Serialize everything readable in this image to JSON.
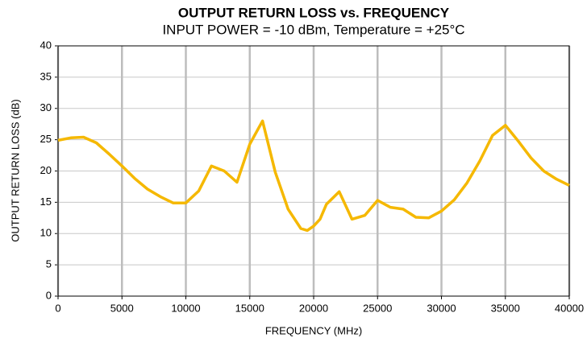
{
  "chart_data": {
    "type": "line",
    "title": "OUTPUT RETURN LOSS vs. FREQUENCY",
    "subtitle": "INPUT POWER = -10 dBm, Temperature = +25°C",
    "x_label": "FREQUENCY (MHz)",
    "y_label": "OUTPUT RETURN LOSS (dB)",
    "x": [
      0,
      1000,
      2000,
      3000,
      4000,
      5000,
      6000,
      7000,
      8000,
      9000,
      10000,
      11000,
      12000,
      13000,
      14000,
      15000,
      16000,
      17000,
      18000,
      19000,
      19500,
      20000,
      20500,
      21000,
      22000,
      23000,
      24000,
      25000,
      26000,
      27000,
      28000,
      29000,
      30000,
      31000,
      32000,
      33000,
      34000,
      35000,
      36000,
      37000,
      38000,
      39000,
      40000
    ],
    "series": [
      {
        "color": "#f5b800",
        "values": [
          24.9,
          25.3,
          25.4,
          24.5,
          22.7,
          20.8,
          18.8,
          17.1,
          15.9,
          14.9,
          14.9,
          16.8,
          20.8,
          20.0,
          18.2,
          24.3,
          28.0,
          19.8,
          13.9,
          10.8,
          10.5,
          11.2,
          12.3,
          14.7,
          16.7,
          12.3,
          12.9,
          15.3,
          14.2,
          13.9,
          12.6,
          12.5,
          13.6,
          15.4,
          18.1,
          21.6,
          25.7,
          27.3,
          24.8,
          22.1,
          20.0,
          18.7,
          17.7
        ]
      }
    ],
    "xlim": [
      0,
      40000
    ],
    "xticks": [
      0,
      5000,
      10000,
      15000,
      20000,
      25000,
      30000,
      35000,
      40000
    ],
    "ylim": [
      0,
      40
    ],
    "yticks": [
      0,
      5,
      10,
      15,
      20,
      25,
      30,
      35,
      40
    ],
    "grid": true
  }
}
